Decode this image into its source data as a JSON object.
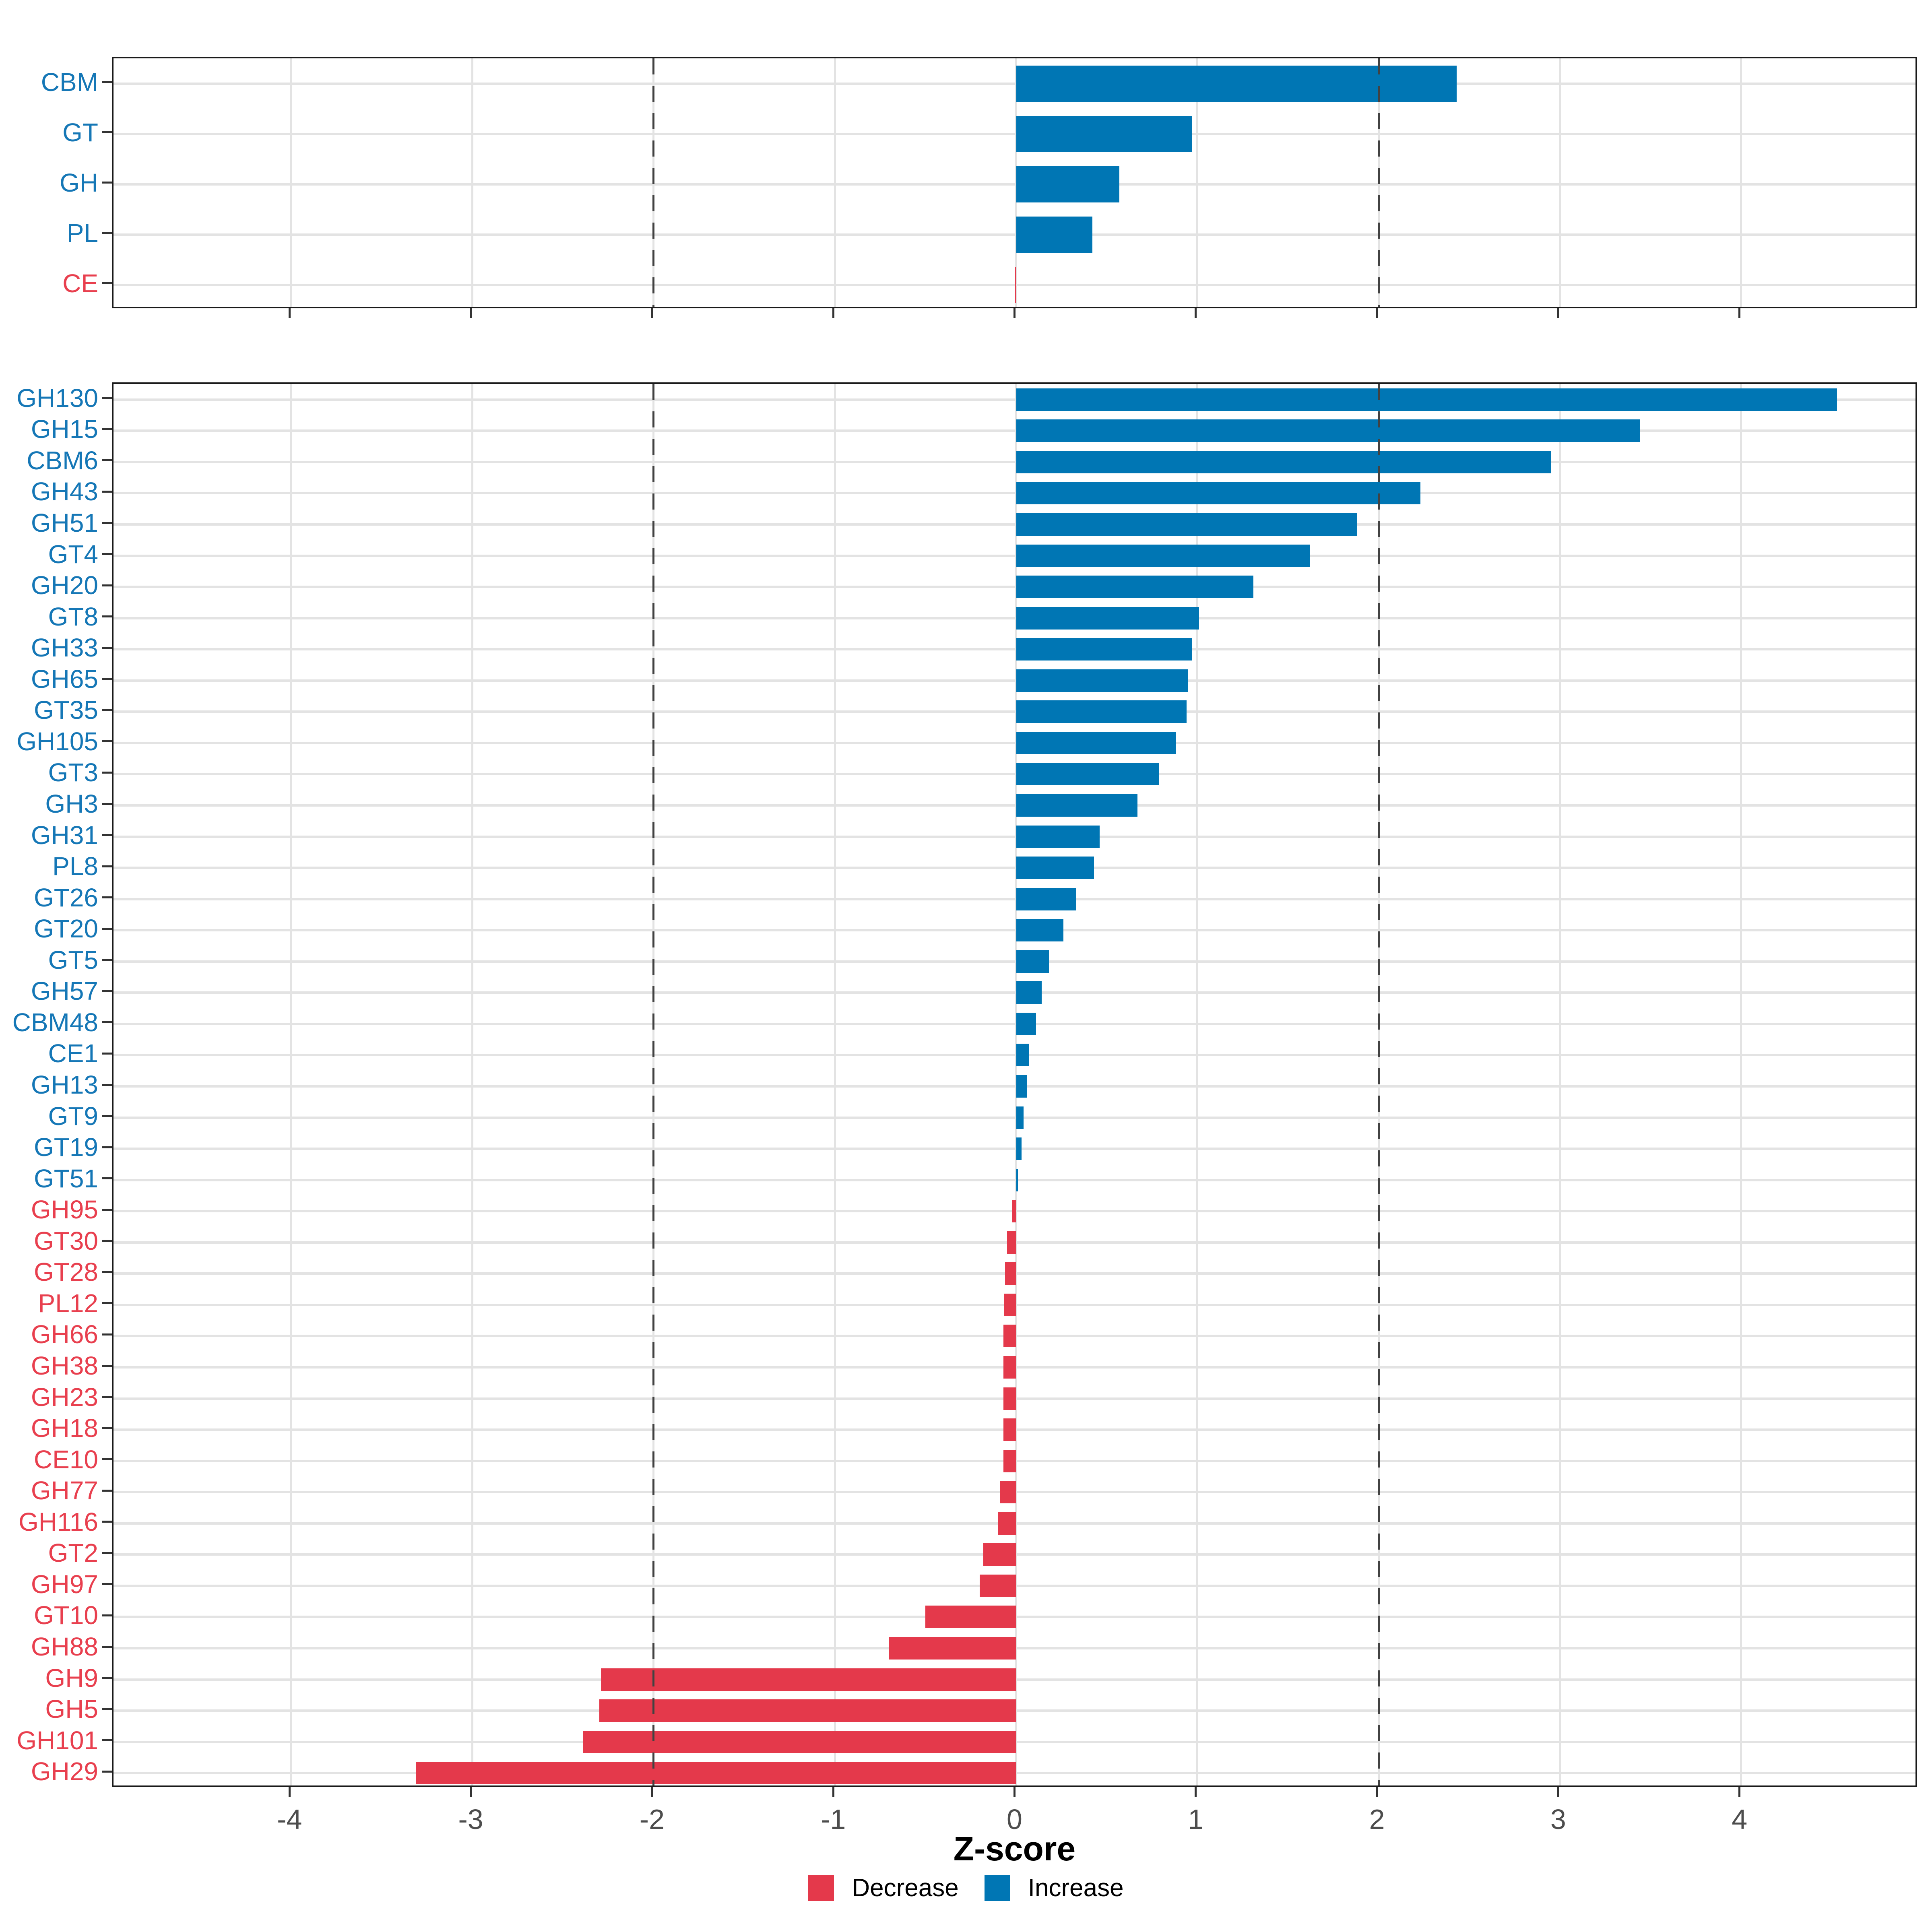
{
  "colors": {
    "increase_bar": "#0076B4",
    "decrease_bar": "#E4394B",
    "increase_label": "#1577B6",
    "decrease_label": "#E83F4E",
    "gridline": "#e3e3e3",
    "dashed_line": "#424242",
    "axis_text": "#4d4d4d",
    "panel_border": "#1a1a1a"
  },
  "axis": {
    "xlabel": "Z-score",
    "tick_values": [
      -4,
      -3,
      -2,
      -1,
      0,
      1,
      2,
      3,
      4
    ],
    "tick_labels": [
      "-4",
      "-3",
      "-2",
      "-1",
      "0",
      "1",
      "2",
      "3",
      "4"
    ]
  },
  "legend": {
    "items": [
      {
        "label": "Decrease",
        "color": "#E4394B"
      },
      {
        "label": "Increase",
        "color": "#0076B4"
      }
    ]
  },
  "chart_data": [
    {
      "type": "bar",
      "orientation": "horizontal",
      "panel": "top",
      "title": "",
      "xlabel": "Z-score",
      "xlim": [
        -4.98,
        4.98
      ],
      "grid": true,
      "reference_lines": [
        -2,
        2
      ],
      "categories": [
        "CBM",
        "GT",
        "GH",
        "PL",
        "CE"
      ],
      "values": [
        2.43,
        0.97,
        0.57,
        0.42,
        -0.005
      ]
    },
    {
      "type": "bar",
      "orientation": "horizontal",
      "panel": "bottom",
      "title": "",
      "xlabel": "Z-score",
      "xlim": [
        -4.98,
        4.98
      ],
      "grid": true,
      "reference_lines": [
        -2,
        2
      ],
      "categories": [
        "GH130",
        "GH15",
        "CBM6",
        "GH43",
        "GH51",
        "GT4",
        "GH20",
        "GT8",
        "GH33",
        "GH65",
        "GT35",
        "GH105",
        "GT3",
        "GH3",
        "GH31",
        "PL8",
        "GT26",
        "GT20",
        "GT5",
        "GH57",
        "CBM48",
        "CE1",
        "GH13",
        "GT9",
        "GT19",
        "GT51",
        "GH95",
        "GT30",
        "GT28",
        "PL12",
        "GH66",
        "GH38",
        "GH23",
        "GH18",
        "CE10",
        "GH77",
        "GH116",
        "GT2",
        "GH97",
        "GT10",
        "GH88",
        "GH9",
        "GH5",
        "GH101",
        "GH29"
      ],
      "values": [
        4.53,
        3.44,
        2.95,
        2.23,
        1.88,
        1.62,
        1.31,
        1.01,
        0.97,
        0.95,
        0.94,
        0.88,
        0.79,
        0.67,
        0.46,
        0.43,
        0.33,
        0.26,
        0.18,
        0.14,
        0.11,
        0.07,
        0.06,
        0.04,
        0.03,
        0.01,
        -0.02,
        -0.05,
        -0.06,
        -0.065,
        -0.07,
        -0.07,
        -0.07,
        -0.07,
        -0.07,
        -0.09,
        -0.1,
        -0.18,
        -0.2,
        -0.5,
        -0.7,
        -2.29,
        -2.3,
        -2.39,
        -3.31
      ]
    }
  ]
}
